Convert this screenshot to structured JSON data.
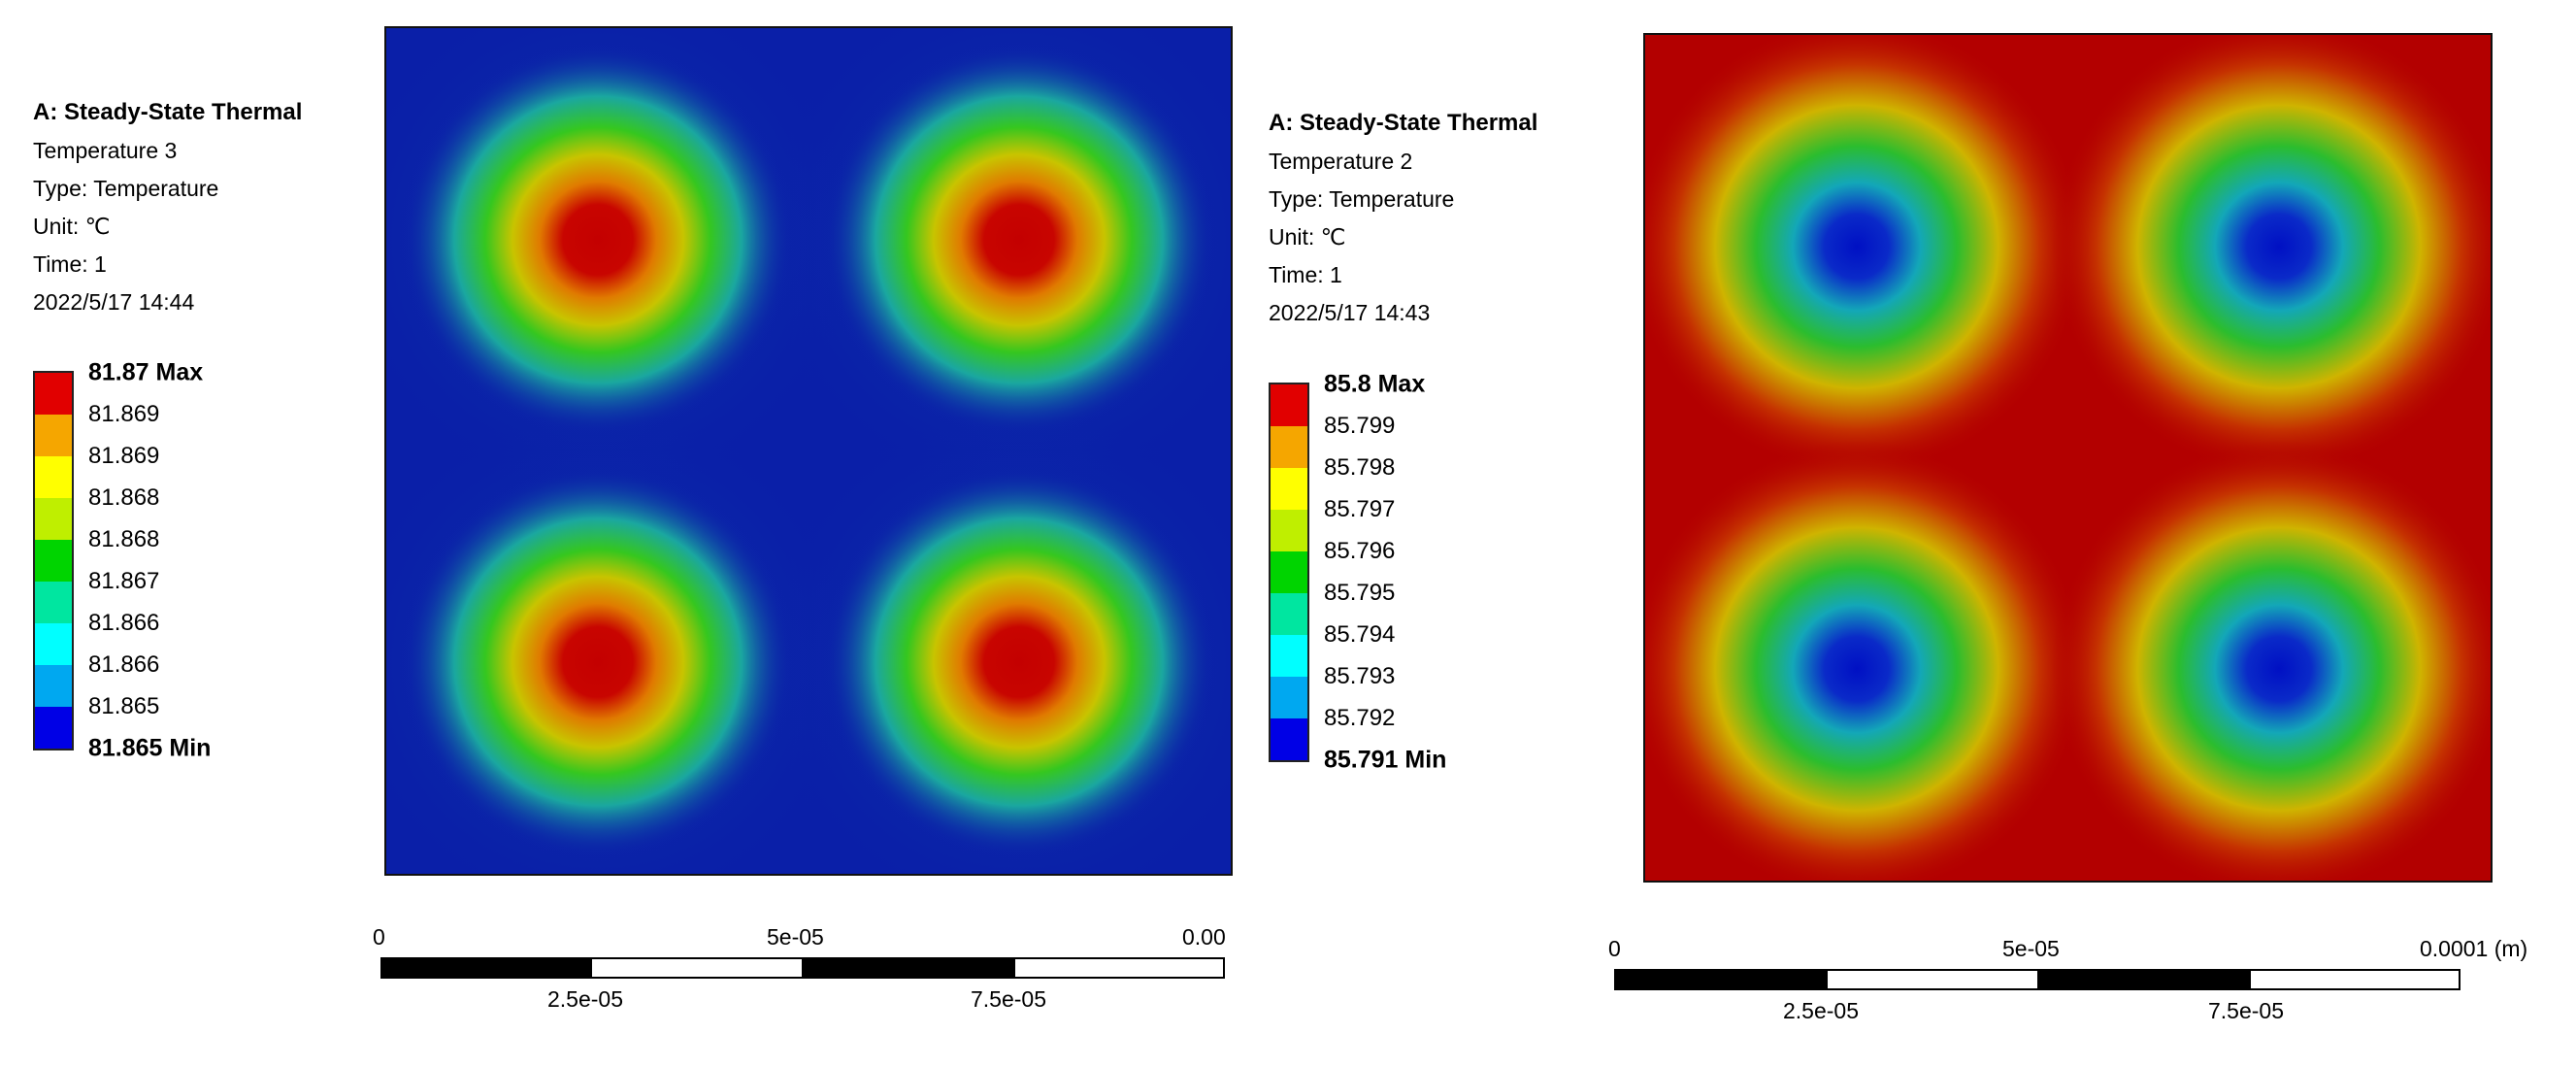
{
  "left": {
    "title": "A: Steady-State Thermal",
    "name": "Temperature 3",
    "type": "Type: Temperature",
    "unit": "Unit: ℃",
    "time": "Time: 1",
    "date": "2022/5/17 14:44",
    "legend": {
      "max": "81.87 Max",
      "levels": [
        "81.869",
        "81.869",
        "81.868",
        "81.868",
        "81.867",
        "81.866",
        "81.866",
        "81.865"
      ],
      "min": "81.865 Min"
    },
    "scale": {
      "top_labels": [
        "0",
        "5e-05",
        "0.000"
      ],
      "bottom_labels": [
        "2.5e-05",
        "7.5e-05"
      ]
    }
  },
  "right": {
    "title": "A: Steady-State Thermal",
    "name": "Temperature 2",
    "type": "Type: Temperature",
    "unit": "Unit: ℃",
    "time": "Time: 1",
    "date": "2022/5/17 14:43",
    "legend": {
      "max": "85.8 Max",
      "levels": [
        "85.799",
        "85.798",
        "85.797",
        "85.796",
        "85.795",
        "85.794",
        "85.793",
        "85.792"
      ],
      "min": "85.791 Min"
    },
    "scale": {
      "top_labels": [
        "0",
        "5e-05",
        "0.0001 (m)"
      ],
      "bottom_labels": [
        "2.5e-05",
        "7.5e-05"
      ]
    }
  },
  "colors": {
    "legend_bands": [
      "#e10000",
      "#f5a600",
      "#ffff00",
      "#bfef00",
      "#00d400",
      "#00e6a0",
      "#00ffff",
      "#00a8f0",
      "#0000e6"
    ],
    "hot_spot_gradient": [
      "#0a1fa8",
      "#1aa7a0",
      "#35c71f",
      "#c8c400",
      "#e07a00",
      "#c40000"
    ],
    "cold_spot_gradient": [
      "#b30000",
      "#c53300",
      "#cfb400",
      "#2bbd2e",
      "#13a7b8",
      "#0010c4"
    ]
  }
}
